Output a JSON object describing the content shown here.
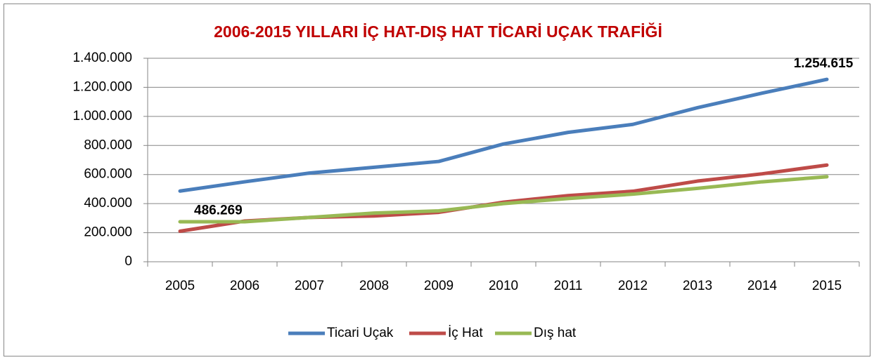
{
  "chart_data": {
    "type": "line",
    "title": "2006-2015 YILLARI İÇ HAT-DIŞ HAT TİCARİ UÇAK TRAFİĞİ",
    "categories": [
      "2005",
      "2006",
      "2007",
      "2008",
      "2009",
      "2010",
      "2011",
      "2012",
      "2013",
      "2014",
      "2015"
    ],
    "series": [
      {
        "name": "Ticari Uçak",
        "color": "#4a7ebb",
        "values": [
          486269,
          550000,
          610000,
          650000,
          690000,
          810000,
          890000,
          945000,
          1060000,
          1160000,
          1254615
        ],
        "value_labels": [
          "486.269",
          null,
          null,
          null,
          null,
          null,
          null,
          null,
          null,
          null,
          "1.254.615"
        ]
      },
      {
        "name": "İç Hat",
        "color": "#be4b48",
        "values": [
          210000,
          280000,
          305000,
          315000,
          340000,
          410000,
          455000,
          485000,
          555000,
          605000,
          665000
        ]
      },
      {
        "name": "Dış hat",
        "color": "#98b954",
        "values": [
          275000,
          275000,
          305000,
          335000,
          350000,
          400000,
          435000,
          465000,
          505000,
          550000,
          585000
        ]
      }
    ],
    "ylim": [
      0,
      1400000
    ],
    "yticks": [
      0,
      {
        "value": 200000,
        "label": "200.000"
      },
      {
        "value": 400000,
        "label": "400.000"
      },
      {
        "value": 600000,
        "label": "600.000"
      },
      {
        "value": 800000,
        "label": "800.000"
      },
      {
        "value": 1000000,
        "label": "1.000.000"
      },
      {
        "value": 1200000,
        "label": "1.200.000"
      },
      {
        "value": 1400000,
        "label": "1.400.000"
      }
    ],
    "grid": true,
    "legend": "bottom"
  }
}
